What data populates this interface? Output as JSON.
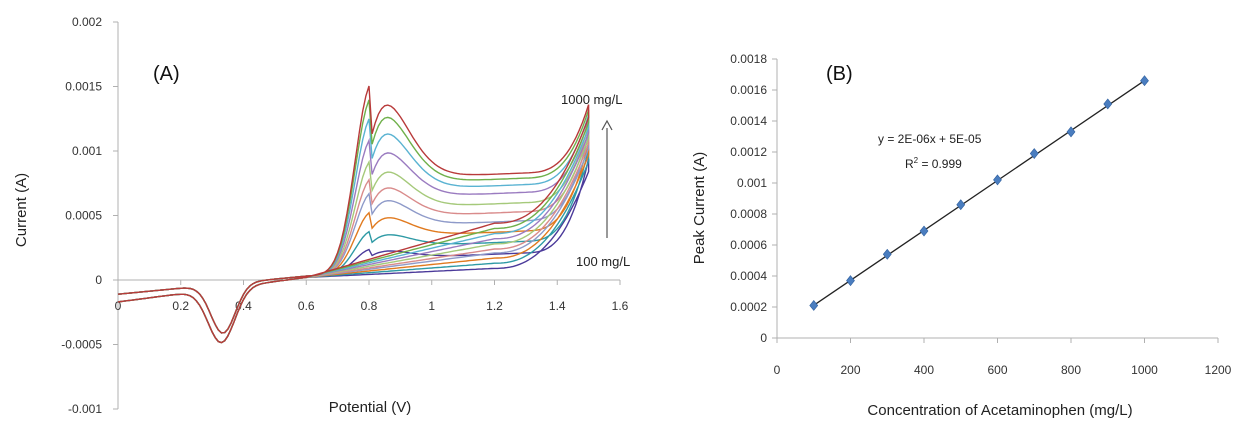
{
  "chart_data": [
    {
      "type": "line",
      "panel_label": "(A)",
      "xlabel": "Potential (V)",
      "ylabel": "Current (A)",
      "xlim": [
        0,
        1.6
      ],
      "ylim": [
        -0.001,
        0.002
      ],
      "xticks": [
        "0",
        "0.2",
        "0.4",
        "0.6",
        "0.8",
        "1",
        "1.2",
        "1.4",
        "1.6"
      ],
      "yticks": [
        "-0.001",
        "-0.0005",
        "0",
        "0.0005",
        "0.001",
        "0.0015",
        "0.002"
      ],
      "grid": false,
      "annotations": {
        "top": "1000 mg/L",
        "bottom": "100 mg/L"
      },
      "series": [
        {
          "concentration": 100,
          "color": "#4b3a9a",
          "peak": 0.00019,
          "plateau": 0.00011,
          "end": 0.00082,
          "ret": 7e-05
        },
        {
          "concentration": 200,
          "color": "#2e9aa5",
          "peak": 0.00033,
          "plateau": 0.0002,
          "end": 0.0009,
          "ret": 0.00011
        },
        {
          "concentration": 300,
          "color": "#e07a1f",
          "peak": 0.00048,
          "plateau": 0.00028,
          "end": 0.00095,
          "ret": 0.00015
        },
        {
          "concentration": 400,
          "color": "#8e9ac9",
          "peak": 0.00063,
          "plateau": 0.00036,
          "end": 0.001,
          "ret": 0.00019
        },
        {
          "concentration": 500,
          "color": "#d98b8b",
          "peak": 0.00074,
          "plateau": 0.00043,
          "end": 0.00104,
          "ret": 0.00022
        },
        {
          "concentration": 600,
          "color": "#a5c97a",
          "peak": 0.00088,
          "plateau": 0.0005,
          "end": 0.00108,
          "ret": 0.00026
        },
        {
          "concentration": 700,
          "color": "#9a7bc0",
          "peak": 0.00105,
          "plateau": 0.00058,
          "end": 0.00112,
          "ret": 0.0003
        },
        {
          "concentration": 800,
          "color": "#5ab3d2",
          "peak": 0.00122,
          "plateau": 0.00064,
          "end": 0.00116,
          "ret": 0.00034
        },
        {
          "concentration": 900,
          "color": "#6fb04a",
          "peak": 0.00137,
          "plateau": 0.00069,
          "end": 0.0012,
          "ret": 0.00038
        },
        {
          "concentration": 1000,
          "color": "#b83a3a",
          "peak": 0.00148,
          "plateau": 0.00073,
          "end": 0.00124,
          "ret": 0.00042
        }
      ]
    },
    {
      "type": "scatter",
      "panel_label": "(B)",
      "xlabel": "Concentration of Acetaminophen (mg/L)",
      "ylabel": "Peak Current (A)",
      "xlim": [
        0,
        1200
      ],
      "ylim": [
        0,
        0.0018
      ],
      "xticks": [
        "0",
        "200",
        "400",
        "600",
        "800",
        "1000",
        "1200"
      ],
      "yticks": [
        "0",
        "0.0002",
        "0.0004",
        "0.0006",
        "0.0008",
        "0.001",
        "0.0012",
        "0.0014",
        "0.0016",
        "0.0018"
      ],
      "grid": false,
      "marker_color": "#4a7dbf",
      "x": [
        100,
        200,
        300,
        400,
        500,
        600,
        700,
        800,
        900,
        1000
      ],
      "y": [
        0.00021,
        0.00037,
        0.00054,
        0.00069,
        0.00086,
        0.00102,
        0.00119,
        0.00133,
        0.00151,
        0.00166
      ],
      "trendline": {
        "slope": 1.611e-06,
        "intercept": 4.96e-05,
        "x_range": [
          100,
          1000
        ]
      },
      "equation": "y = 2E-06x + 5E-05",
      "r2_prefix": "R",
      "r2_sup": "2",
      "r2_suffix": " = 0.999"
    }
  ]
}
